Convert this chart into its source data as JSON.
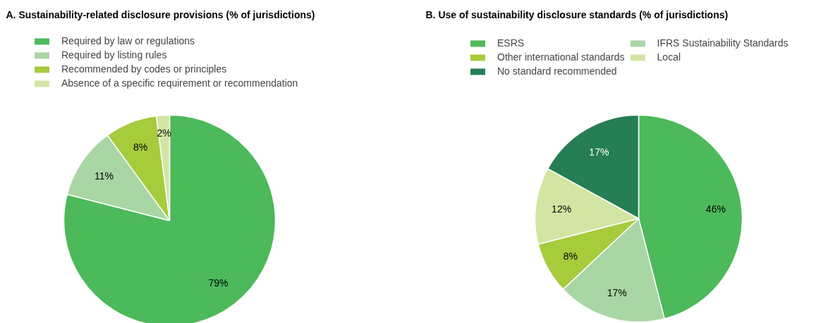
{
  "chart_data": [
    {
      "type": "pie",
      "title": "A. Sustainability-related disclosure provisions (% of jurisdictions)",
      "categories": [
        "Required by law or regulations",
        "Required by listing rules",
        "Recommended by codes or principles",
        "Absence of a specific requirement or recommendation"
      ],
      "values": [
        79,
        11,
        8,
        2
      ],
      "colors": [
        "#4cb95b",
        "#a9d6a5",
        "#a6cb3b",
        "#d3e5a2"
      ],
      "value_labels": [
        "79%",
        "11%",
        "8%",
        "2%"
      ],
      "legend": "top"
    },
    {
      "type": "pie",
      "title": "B. Use of sustainability disclosure standards (% of jurisdictions)",
      "categories": [
        "ESRS",
        "IFRS Sustainability Standards",
        "Other international standards",
        "Local",
        "No standard recommended"
      ],
      "values": [
        46,
        17,
        8,
        12,
        17
      ],
      "colors": [
        "#4cb95b",
        "#a9d6a5",
        "#a6cb3b",
        "#d3e5a2",
        "#267e55"
      ],
      "value_labels": [
        "46%",
        "17%",
        "8%",
        "12%",
        "17%"
      ],
      "legend": "top"
    }
  ]
}
